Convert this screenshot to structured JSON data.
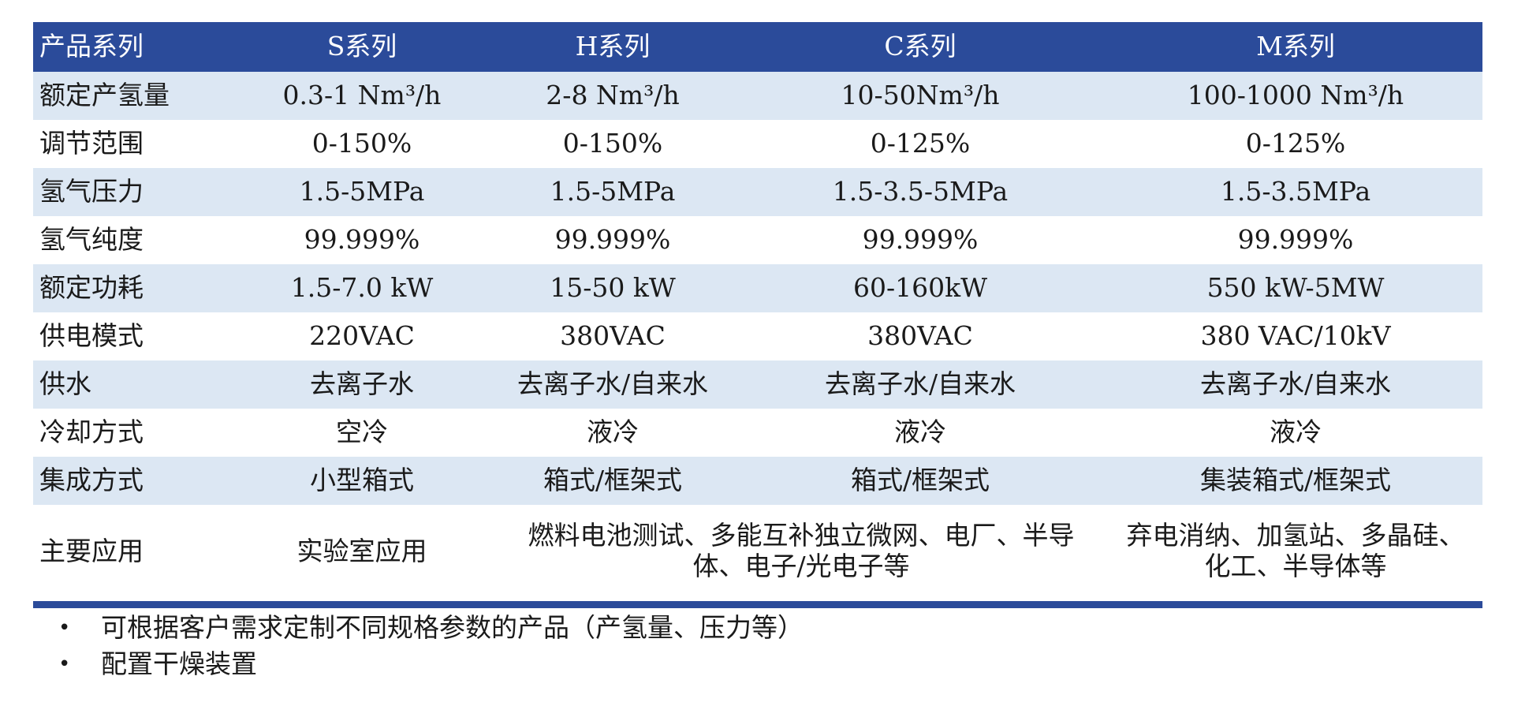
{
  "table": {
    "header": [
      "产品系列",
      "S系列",
      "H系列",
      "C系列",
      "M系列"
    ],
    "rows": [
      [
        "额定产氢量",
        "0.3-1 Nm³/h",
        "2-8 Nm³/h",
        "10-50Nm³/h",
        "100-1000 Nm³/h"
      ],
      [
        "调节范围",
        "0-150%",
        "0-150%",
        "0-125%",
        "0-125%"
      ],
      [
        "氢气压力",
        "1.5-5MPa",
        "1.5-5MPa",
        "1.5-3.5-5MPa",
        "1.5-3.5MPa"
      ],
      [
        "氢气纯度",
        "99.999%",
        "99.999%",
        "99.999%",
        "99.999%"
      ],
      [
        "额定功耗",
        "1.5-7.0 kW",
        "15-50 kW",
        "60-160kW",
        "550 kW-5MW"
      ],
      [
        "供电模式",
        "220VAC",
        "380VAC",
        "380VAC",
        "380 VAC/10kV"
      ],
      [
        "供水",
        "去离子水",
        "去离子水/自来水",
        "去离子水/自来水",
        "去离子水/自来水"
      ],
      [
        "冷却方式",
        "空冷",
        "液冷",
        "液冷",
        "液冷"
      ],
      [
        "集成方式",
        "小型箱式",
        "箱式/框架式",
        "箱式/框架式",
        "集装箱式/框架式"
      ]
    ],
    "last_row": {
      "label": "主要应用",
      "s_series": "实验室应用",
      "hc_series": "燃料电池测试、多能互补独立微网、电厂、半导体、电子/光电子等",
      "m_series": "弃电消纳、加氢站、多晶硅、化工、半导体等"
    }
  },
  "notes": {
    "bullet": "•",
    "items": [
      "可根据客户需求定制不同规格参数的产品（产氢量、压力等）",
      "配置干燥装置"
    ]
  },
  "colors": {
    "header_bg": "#2b4b9a",
    "band_bg": "#dce7f3",
    "rule": "#2b4b9a"
  }
}
